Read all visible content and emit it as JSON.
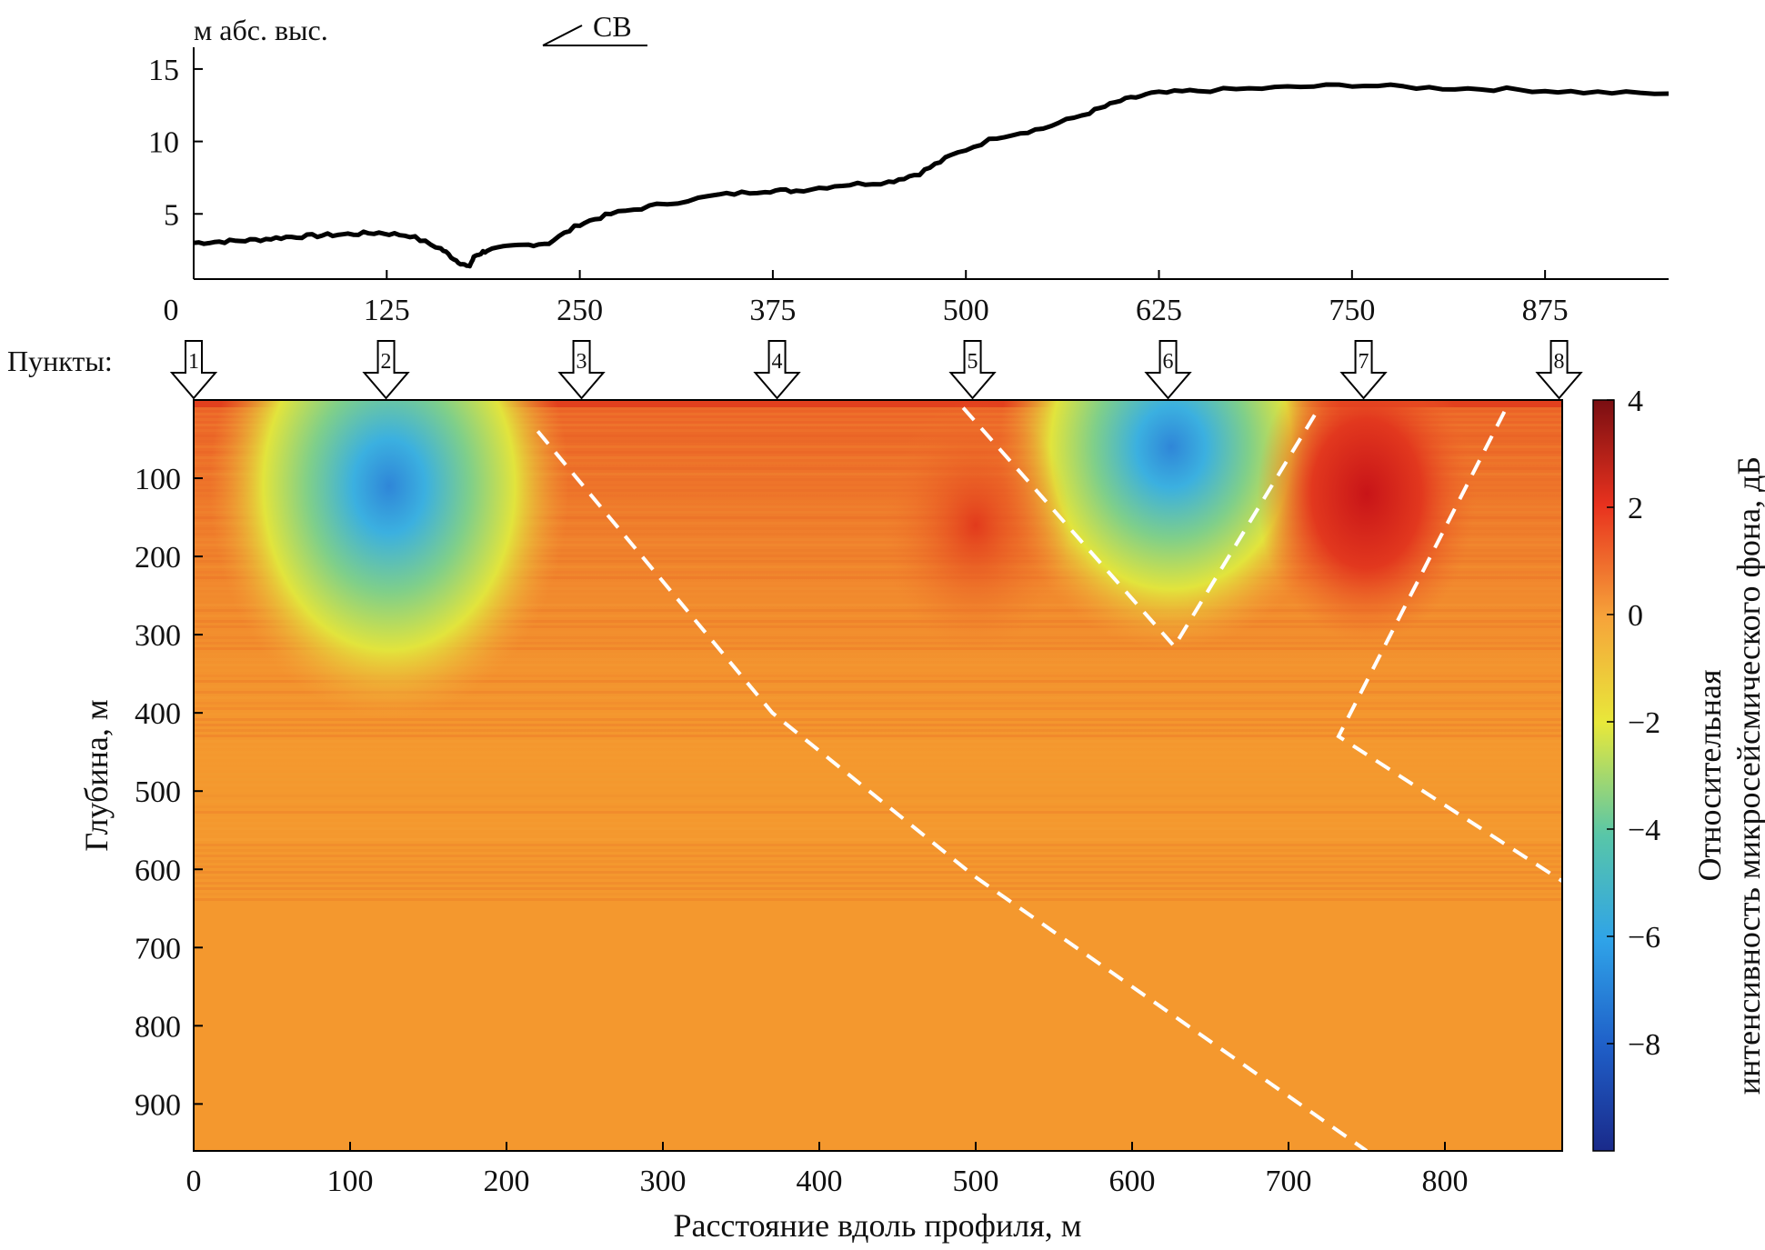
{
  "chart_data": [
    {
      "type": "line",
      "ylabel": "м абс. выс.",
      "direction_label": "СВ",
      "x_ticks": [
        0,
        125,
        250,
        375,
        500,
        625,
        750,
        875
      ],
      "y_ticks": [
        5,
        10,
        15
      ],
      "xlim": [
        0,
        955
      ],
      "ylim": [
        0.5,
        16.5
      ],
      "series": [
        {
          "x": [
            0,
            20,
            40,
            60,
            80,
            100,
            120,
            140,
            160,
            170,
            178,
            182,
            190,
            210,
            230,
            250,
            270,
            300,
            340,
            370,
            390,
            420,
            450,
            470,
            490,
            520,
            550,
            580,
            600,
            620,
            650,
            700,
            750,
            800,
            850,
            900,
            955
          ],
          "y": [
            3.0,
            3.1,
            3.2,
            3.4,
            3.5,
            3.6,
            3.7,
            3.5,
            2.6,
            1.8,
            1.3,
            2.1,
            2.5,
            2.8,
            3.0,
            4.3,
            5.0,
            5.6,
            6.3,
            6.6,
            6.6,
            7.0,
            7.2,
            7.8,
            9.0,
            10.3,
            10.9,
            12.0,
            12.8,
            13.3,
            13.5,
            13.7,
            13.9,
            13.7,
            13.6,
            13.4,
            13.3
          ]
        }
      ]
    },
    {
      "type": "heatmap",
      "xlabel": "Расстояние вдоль профиля, м",
      "ylabel": "Глубина, м",
      "colorbar_label_line1": "Относительная",
      "colorbar_label_line2": "интенсивность микросейсмического фона, дБ",
      "points_label": "Пункты:",
      "xlim": [
        0,
        875
      ],
      "ylim": [
        0,
        960
      ],
      "x_ticks": [
        0,
        100,
        200,
        300,
        400,
        500,
        600,
        700,
        800
      ],
      "y_ticks": [
        100,
        200,
        300,
        400,
        500,
        600,
        700,
        800,
        900
      ],
      "colorbar_ticks": [
        4,
        2,
        0,
        -2,
        -4,
        -6,
        -8
      ],
      "colorbar_range": [
        -10,
        4
      ],
      "points": [
        {
          "label": "1",
          "x": 0
        },
        {
          "label": "2",
          "x": 123
        },
        {
          "label": "3",
          "x": 248
        },
        {
          "label": "4",
          "x": 373
        },
        {
          "label": "5",
          "x": 498
        },
        {
          "label": "6",
          "x": 623
        },
        {
          "label": "7",
          "x": 748
        },
        {
          "label": "8",
          "x": 873
        }
      ],
      "anomalies": [
        {
          "x": 125,
          "y": 110,
          "rx": 115,
          "ry": 300,
          "value": -5.5
        },
        {
          "x": 625,
          "y": 60,
          "rx": 110,
          "ry": 260,
          "value": -5.5
        },
        {
          "x": 750,
          "y": 120,
          "rx": 70,
          "ry": 190,
          "value": 2.6
        },
        {
          "x": 500,
          "y": 160,
          "rx": 60,
          "ry": 160,
          "value": 1.4
        }
      ],
      "dashed_lines": [
        {
          "x": [
            220,
            370,
            500,
            750
          ],
          "y": [
            40,
            400,
            610,
            960
          ]
        },
        {
          "x": [
            492,
            627,
            718
          ],
          "y": [
            10,
            315,
            15
          ]
        },
        {
          "x": [
            838,
            732,
            875
          ],
          "y": [
            15,
            430,
            615
          ]
        }
      ]
    }
  ]
}
